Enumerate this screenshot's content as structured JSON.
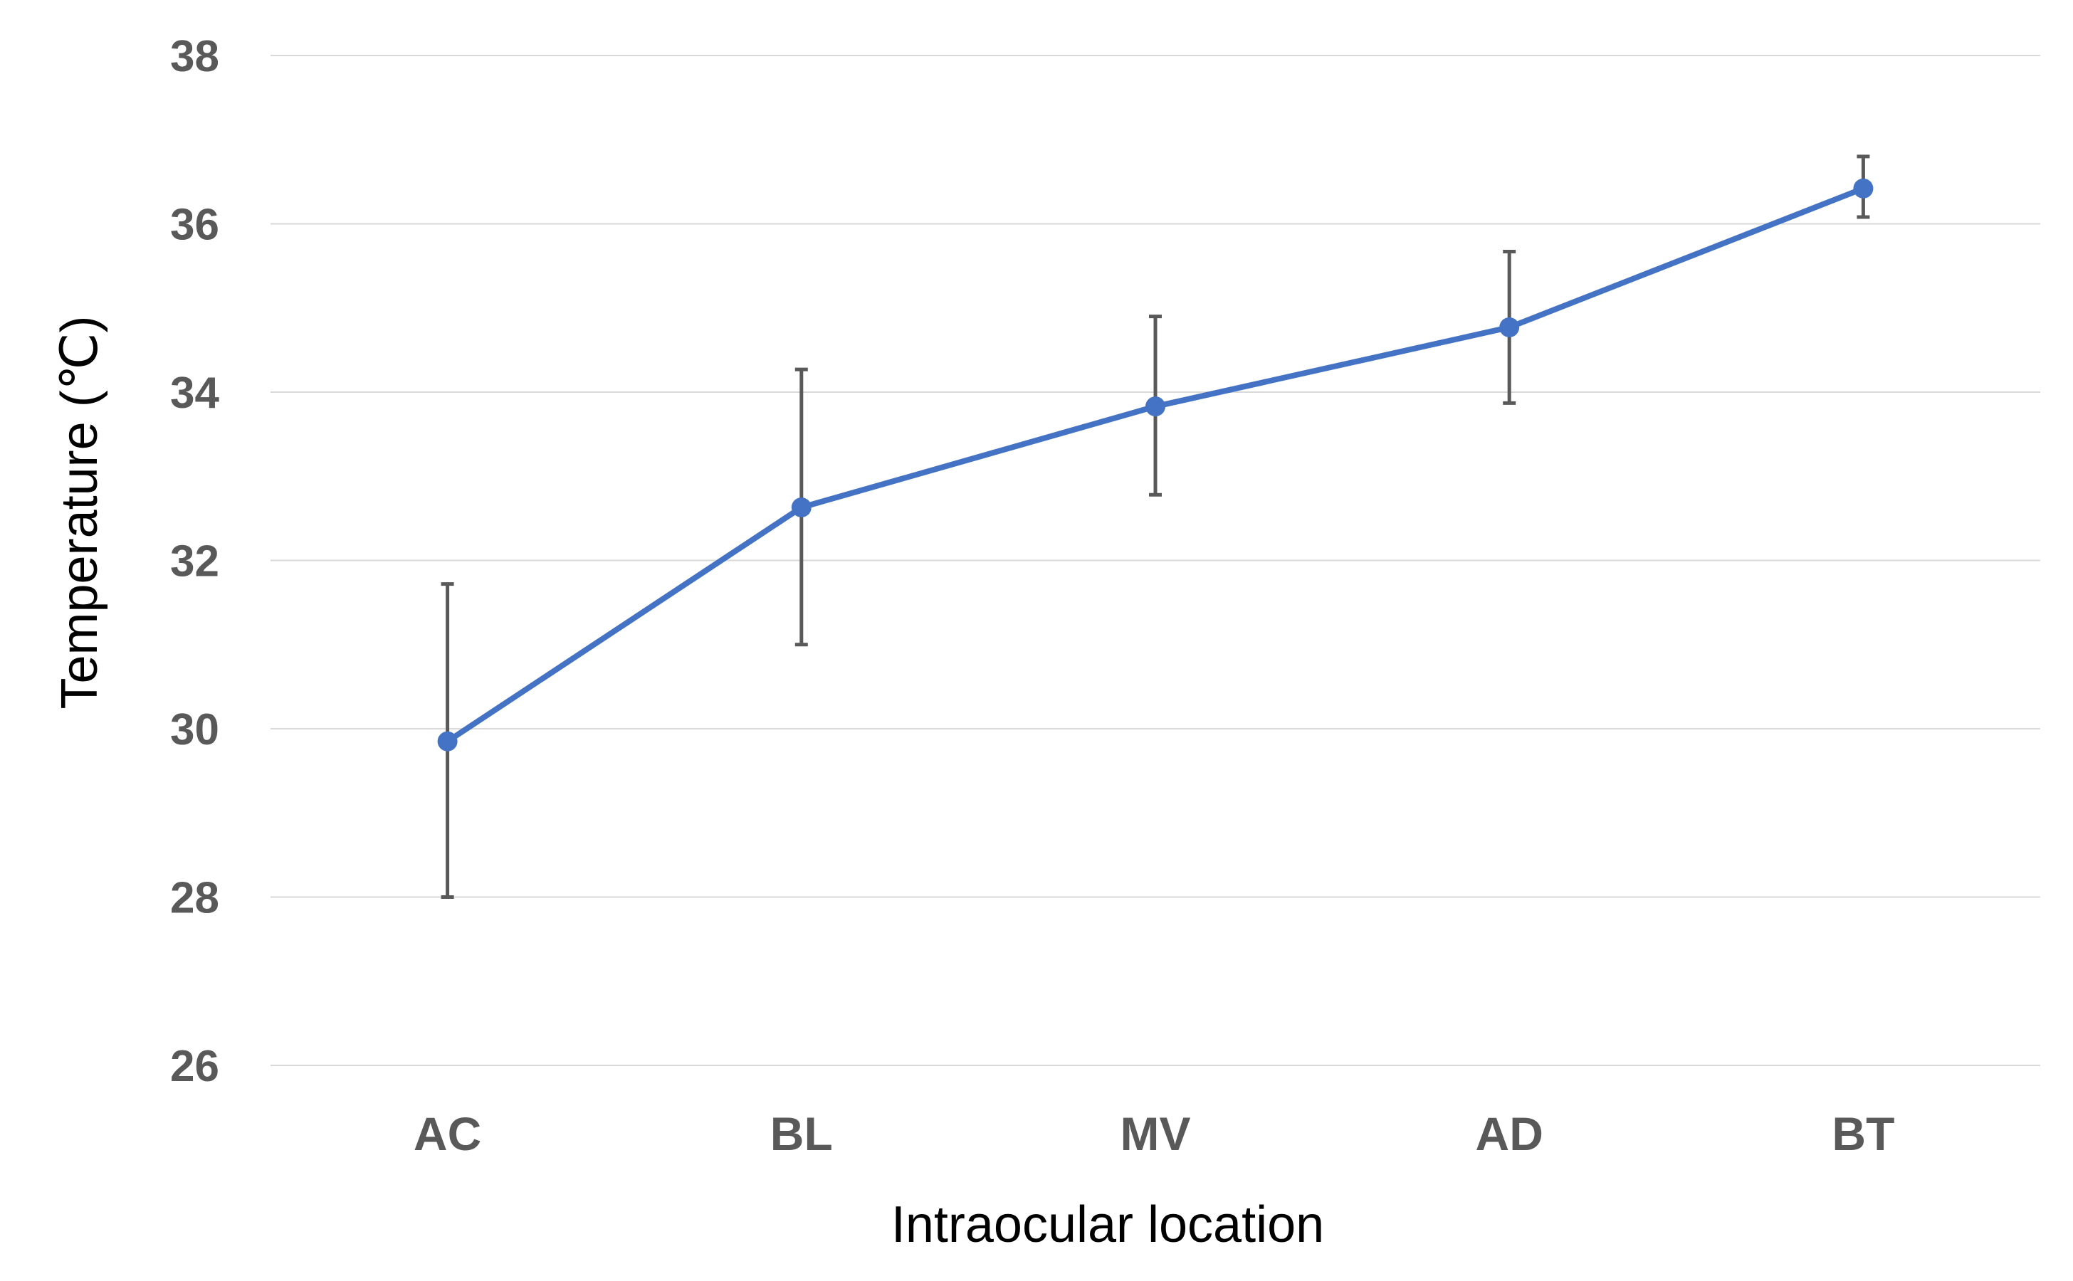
{
  "chart_data": {
    "type": "line",
    "categories": [
      "AC",
      "BL",
      "MV",
      "AD",
      "BT"
    ],
    "series": [
      {
        "values": [
          29.85,
          32.63,
          33.83,
          34.77,
          36.42
        ],
        "error_low": [
          28.0,
          31.0,
          32.78,
          33.87,
          36.08
        ],
        "error_high": [
          31.72,
          34.27,
          34.9,
          35.67,
          36.8
        ],
        "color": "#4472C4"
      }
    ],
    "xlabel": "Intraocular location",
    "ylabel": "Temperature (℃)",
    "ylim": [
      26,
      38
    ],
    "yticks": [
      "26",
      "28",
      "30",
      "32",
      "34",
      "36",
      "38"
    ],
    "grid": true,
    "gridline_color": "#D9D9D9",
    "errorbar_color": "#595959"
  }
}
